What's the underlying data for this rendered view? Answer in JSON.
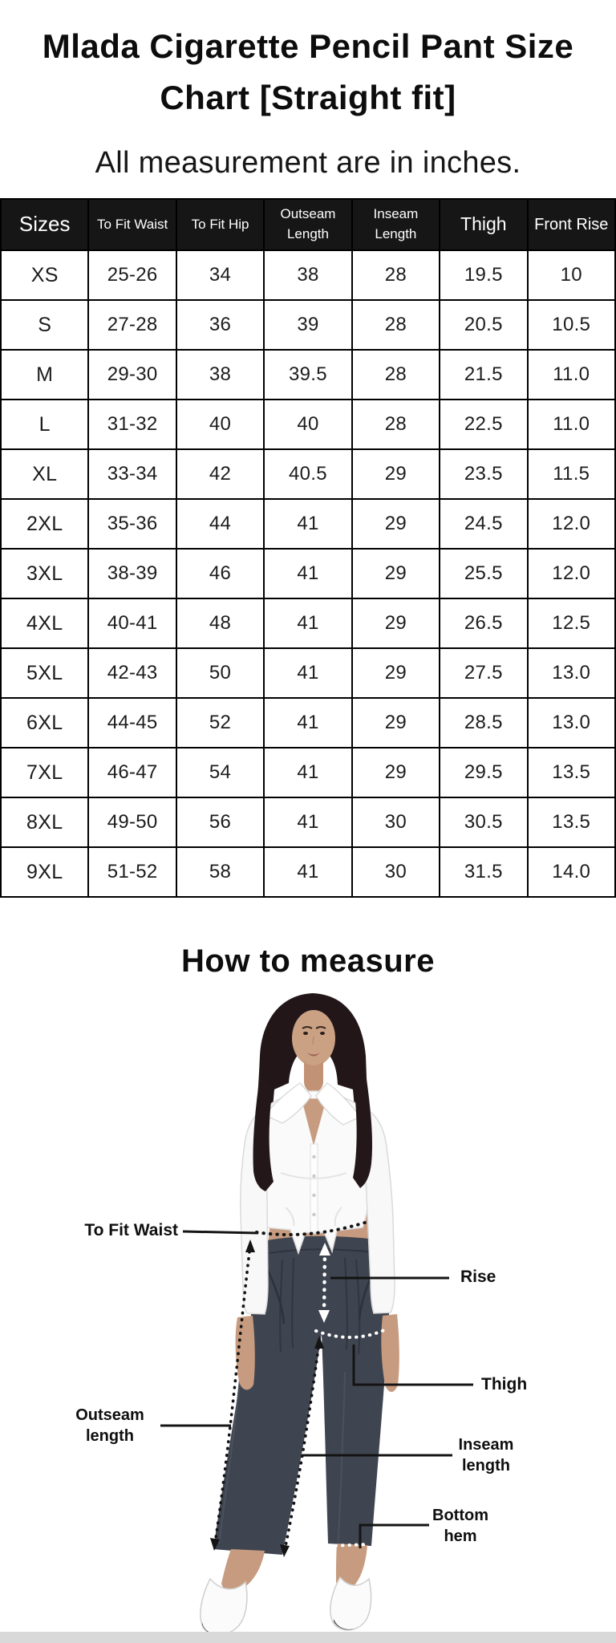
{
  "title": "Mlada Cigarette Pencil Pant Size Chart [Straight fit]",
  "subtitle": "All measurement are in inches.",
  "size_chart": {
    "columns": [
      "Sizes",
      "To Fit Waist",
      "To Fit Hip",
      "Outseam Length",
      "Inseam Length",
      "Thigh",
      "Front Rise"
    ],
    "rows": [
      [
        "XS",
        "25-26",
        "34",
        "38",
        "28",
        "19.5",
        "10"
      ],
      [
        "S",
        "27-28",
        "36",
        "39",
        "28",
        "20.5",
        "10.5"
      ],
      [
        "M",
        "29-30",
        "38",
        "39.5",
        "28",
        "21.5",
        "11.0"
      ],
      [
        "L",
        "31-32",
        "40",
        "40",
        "28",
        "22.5",
        "11.0"
      ],
      [
        "XL",
        "33-34",
        "42",
        "40.5",
        "29",
        "23.5",
        "11.5"
      ],
      [
        "2XL",
        "35-36",
        "44",
        "41",
        "29",
        "24.5",
        "12.0"
      ],
      [
        "3XL",
        "38-39",
        "46",
        "41",
        "29",
        "25.5",
        "12.0"
      ],
      [
        "4XL",
        "40-41",
        "48",
        "41",
        "29",
        "26.5",
        "12.5"
      ],
      [
        "5XL",
        "42-43",
        "50",
        "41",
        "29",
        "27.5",
        "13.0"
      ],
      [
        "6XL",
        "44-45",
        "52",
        "41",
        "29",
        "28.5",
        "13.0"
      ],
      [
        "7XL",
        "46-47",
        "54",
        "41",
        "29",
        "29.5",
        "13.5"
      ],
      [
        "8XL",
        "49-50",
        "56",
        "41",
        "30",
        "30.5",
        "13.5"
      ],
      [
        "9XL",
        "51-52",
        "58",
        "41",
        "30",
        "31.5",
        "14.0"
      ]
    ]
  },
  "how_to_measure": {
    "title": "How to measure",
    "labels": {
      "to_fit_waist": "To Fit Waist",
      "rise": "Rise",
      "thigh": "Thigh",
      "outseam": "Outseam length",
      "inseam": "Inseam length",
      "bottom_hem": "Bottom hem"
    }
  },
  "colors": {
    "header_bg": "#161616",
    "header_text": "#ffffff",
    "table_border": "#000000",
    "pants": "#3f4550",
    "skin": "#c79b7f",
    "bottom_bar": "#d9d9d9"
  }
}
